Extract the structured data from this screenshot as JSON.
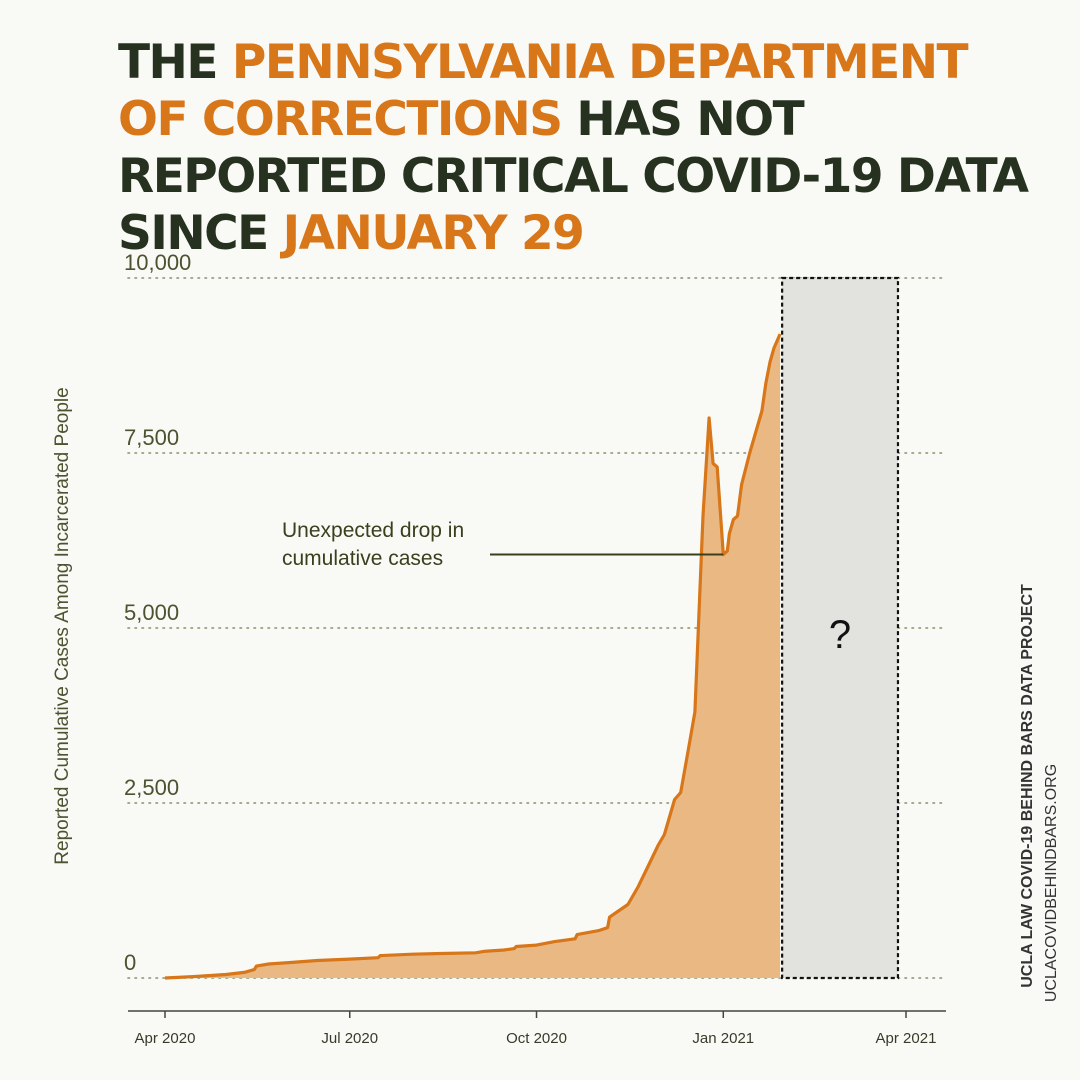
{
  "title": {
    "segments": [
      {
        "text": "The ",
        "highlight": false
      },
      {
        "text": "Pennsylvania Department of Corrections",
        "highlight": true
      },
      {
        "text": " has not reported critical COVID-19 data since ",
        "highlight": false
      },
      {
        "text": "January 29",
        "highlight": true
      }
    ]
  },
  "credits": {
    "org": "UCLA LAW COVID-19 BEHIND BARS DATA PROJECT",
    "url": "UCLACOVIDBEHINDBARS.ORG"
  },
  "colors": {
    "accent": "#d8761a",
    "area_fill": "#eab983",
    "title_dark": "#26321f",
    "grid": "#8a8f68",
    "missing_box": "#e2e3df"
  },
  "chart_data": {
    "type": "area",
    "ylabel": "Reported Cumulative Cases Among Incarcerated People",
    "xlabel": "",
    "ylim": [
      0,
      10000
    ],
    "xlim": [
      "2020-03-20",
      "2021-04-25"
    ],
    "yticks": [
      {
        "value": 0,
        "label": "0"
      },
      {
        "value": 2500,
        "label": "2,500"
      },
      {
        "value": 5000,
        "label": "5,000"
      },
      {
        "value": 7500,
        "label": "7,500"
      },
      {
        "value": 10000,
        "label": "10,000"
      }
    ],
    "xticks": [
      {
        "date": "2020-04-01",
        "label": "Apr 2020"
      },
      {
        "date": "2020-07-01",
        "label": "Jul 2020"
      },
      {
        "date": "2020-10-01",
        "label": "Oct 2020"
      },
      {
        "date": "2021-01-01",
        "label": "Jan 2021"
      },
      {
        "date": "2021-04-01",
        "label": "Apr 2021"
      }
    ],
    "grid": "horizontal dotted",
    "series": [
      {
        "points": [
          [
            "2020-04-01",
            0
          ],
          [
            "2020-04-15",
            20
          ],
          [
            "2020-05-01",
            50
          ],
          [
            "2020-05-10",
            80
          ],
          [
            "2020-05-15",
            120
          ],
          [
            "2020-05-16",
            170
          ],
          [
            "2020-05-22",
            200
          ],
          [
            "2020-06-01",
            220
          ],
          [
            "2020-06-15",
            250
          ],
          [
            "2020-07-01",
            270
          ],
          [
            "2020-07-15",
            290
          ],
          [
            "2020-07-16",
            320
          ],
          [
            "2020-08-01",
            340
          ],
          [
            "2020-08-15",
            350
          ],
          [
            "2020-09-01",
            360
          ],
          [
            "2020-09-05",
            380
          ],
          [
            "2020-09-15",
            400
          ],
          [
            "2020-09-20",
            420
          ],
          [
            "2020-09-21",
            450
          ],
          [
            "2020-10-01",
            470
          ],
          [
            "2020-10-10",
            520
          ],
          [
            "2020-10-20",
            560
          ],
          [
            "2020-10-21",
            620
          ],
          [
            "2020-11-01",
            680
          ],
          [
            "2020-11-05",
            720
          ],
          [
            "2020-11-06",
            870
          ],
          [
            "2020-11-10",
            950
          ],
          [
            "2020-11-15",
            1050
          ],
          [
            "2020-11-20",
            1300
          ],
          [
            "2020-11-25",
            1600
          ],
          [
            "2020-11-30",
            1900
          ],
          [
            "2020-12-03",
            2050
          ],
          [
            "2020-12-08",
            2550
          ],
          [
            "2020-12-11",
            2650
          ],
          [
            "2020-12-15",
            3300
          ],
          [
            "2020-12-18",
            3800
          ],
          [
            "2020-12-22",
            6600
          ],
          [
            "2020-12-25",
            8000
          ],
          [
            "2020-12-27",
            7350
          ],
          [
            "2020-12-29",
            7300
          ],
          [
            "2021-01-01",
            6050
          ],
          [
            "2021-01-03",
            6100
          ],
          [
            "2021-01-04",
            6350
          ],
          [
            "2021-01-06",
            6550
          ],
          [
            "2021-01-08",
            6600
          ],
          [
            "2021-01-10",
            7050
          ],
          [
            "2021-01-14",
            7500
          ],
          [
            "2021-01-17",
            7800
          ],
          [
            "2021-01-20",
            8100
          ],
          [
            "2021-01-22",
            8500
          ],
          [
            "2021-01-24",
            8800
          ],
          [
            "2021-01-26",
            9000
          ],
          [
            "2021-01-29",
            9200
          ]
        ]
      }
    ],
    "annotations": [
      {
        "text_lines": [
          "Unexpected drop in",
          "cumulative cases"
        ],
        "target_date": "2021-01-01",
        "target_value": 6050
      }
    ],
    "missing_period": {
      "start": "2021-01-29",
      "end": "2021-03-31",
      "label": "?"
    }
  }
}
